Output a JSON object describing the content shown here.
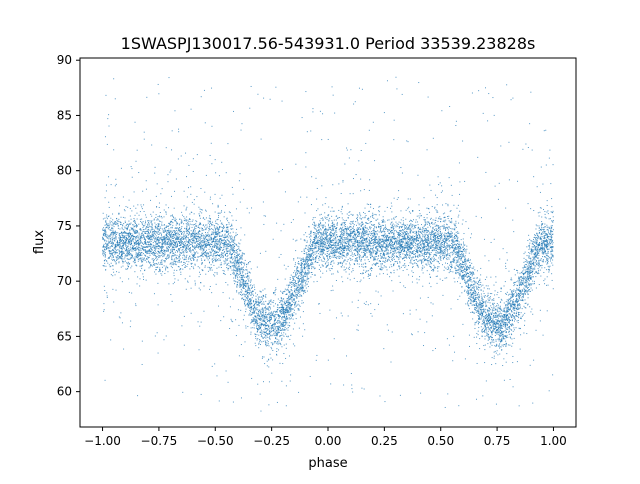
{
  "chart_data": {
    "type": "scatter",
    "title": "1SWASPJ130017.56-543931.0 Period 33539.23828s",
    "xlabel": "phase",
    "ylabel": "flux",
    "xlim": [
      -1.1,
      1.1
    ],
    "ylim": [
      56.8,
      90.2
    ],
    "xticks": [
      -1.0,
      -0.75,
      -0.5,
      -0.25,
      0.0,
      0.25,
      0.5,
      0.75,
      1.0
    ],
    "xtick_labels": [
      "−1.00",
      "−0.75",
      "−0.50",
      "−0.25",
      "0.00",
      "0.25",
      "0.50",
      "0.75",
      "1.00"
    ],
    "yticks": [
      60,
      65,
      70,
      75,
      80,
      85,
      90
    ],
    "ytick_labels": [
      "60",
      "65",
      "70",
      "75",
      "80",
      "85",
      "90"
    ],
    "grid": false,
    "marker_color": "#1f77b4",
    "series": [
      {
        "phase_range": [
          -1.0,
          1.0
        ],
        "baseline_flux": 73.5,
        "baseline_scatter": 1.2,
        "eclipse_minima": [
          {
            "phase": -0.25,
            "flux": 66.0
          },
          {
            "phase": 0.75,
            "flux": 66.0
          }
        ],
        "eclipse_half_width": 0.2
      }
    ]
  }
}
